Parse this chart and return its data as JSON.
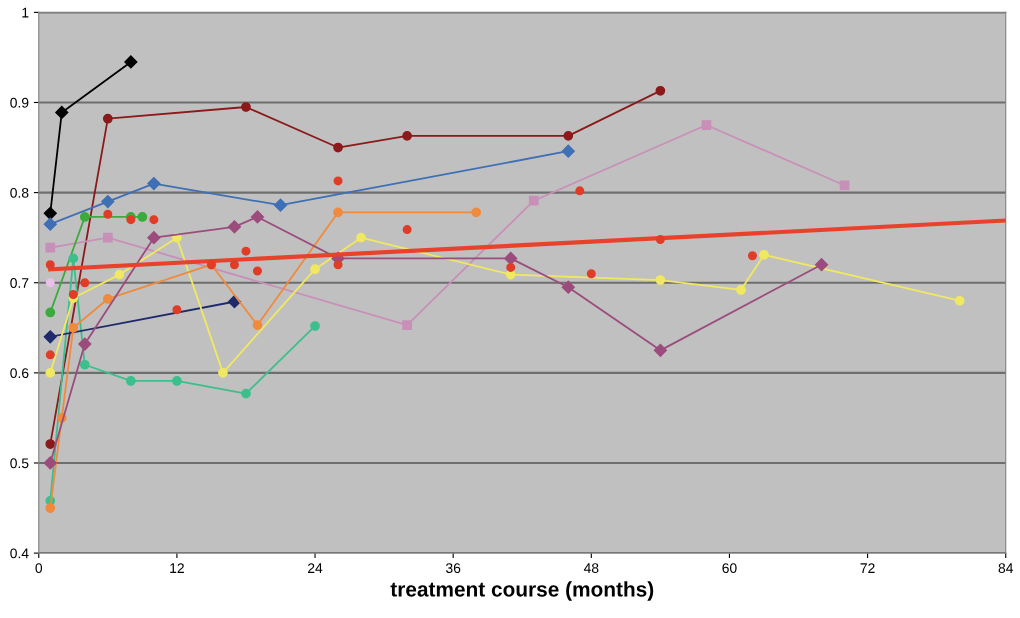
{
  "chart_data": {
    "type": "line",
    "xlabel": "treatment course (months)",
    "xlim": [
      0,
      84
    ],
    "xticks": [
      0,
      12,
      24,
      36,
      48,
      60,
      72,
      84
    ],
    "ylim": [
      0.4,
      1
    ],
    "yticks": [
      0.4,
      0.5,
      0.6,
      0.7,
      0.8,
      0.9,
      1
    ],
    "grid": "y",
    "series": [
      {
        "color": "#000000",
        "marker": "diamond",
        "x": [
          1,
          2,
          8
        ],
        "values": [
          0.777,
          0.889,
          0.945
        ]
      },
      {
        "color": "#8b1a1a",
        "marker": "circle",
        "x": [
          1,
          6,
          18,
          26,
          32,
          46,
          54
        ],
        "values": [
          0.521,
          0.882,
          0.895,
          0.85,
          0.863,
          0.863,
          0.913
        ]
      },
      {
        "color": "#3f6fb5",
        "marker": "diamond",
        "x": [
          1,
          6,
          10,
          21,
          46
        ],
        "values": [
          0.765,
          0.79,
          0.81,
          0.786,
          0.846
        ]
      },
      {
        "color": "#c890b8",
        "marker": "square",
        "x": [
          1,
          6,
          32,
          43,
          58,
          70
        ],
        "values": [
          0.739,
          0.75,
          0.653,
          0.791,
          0.875,
          0.808
        ]
      },
      {
        "color": "#3caa3c",
        "marker": "circle",
        "x": [
          1,
          4,
          8,
          9
        ],
        "values": [
          0.667,
          0.773,
          0.773,
          0.773
        ]
      },
      {
        "color": "#3cbf8c",
        "marker": "circle",
        "x": [
          1,
          3,
          4,
          8,
          12,
          18,
          24
        ],
        "values": [
          0.458,
          0.727,
          0.609,
          0.591,
          0.591,
          0.577,
          0.652
        ]
      },
      {
        "color": "#1f2a6b",
        "marker": "diamond",
        "x": [
          1,
          17
        ],
        "values": [
          0.64,
          0.679
        ]
      },
      {
        "color": "#f0e860",
        "marker": "circle",
        "x": [
          1,
          3,
          7,
          12,
          16,
          24,
          28,
          41,
          54,
          61,
          63,
          80
        ],
        "values": [
          0.6,
          0.683,
          0.709,
          0.75,
          0.6,
          0.715,
          0.75,
          0.709,
          0.703,
          0.692,
          0.731,
          0.68
        ]
      },
      {
        "color": "#f08a3c",
        "marker": "circle",
        "x": [
          1,
          2,
          3,
          6,
          15,
          19,
          26,
          38
        ],
        "values": [
          0.45,
          0.55,
          0.65,
          0.682,
          0.72,
          0.653,
          0.778,
          0.778
        ]
      },
      {
        "color": "#9c4c7c",
        "marker": "diamond",
        "x": [
          1,
          4,
          10,
          17,
          19,
          26,
          41,
          46,
          54,
          68
        ],
        "values": [
          0.5,
          0.632,
          0.75,
          0.762,
          0.773,
          0.727,
          0.727,
          0.695,
          0.625,
          0.72
        ]
      },
      {
        "type": "scatter",
        "color": "#e8c0e8",
        "marker": "circle",
        "x": [
          1
        ],
        "values": [
          0.7
        ]
      },
      {
        "type": "scatter",
        "color": "#e03c28",
        "marker": "circle",
        "x": [
          1,
          1,
          3,
          4,
          6,
          8,
          10,
          12,
          15,
          17,
          18,
          19,
          26,
          26,
          32,
          41,
          47,
          48,
          54,
          62
        ],
        "values": [
          0.72,
          0.62,
          0.687,
          0.7,
          0.776,
          0.77,
          0.77,
          0.67,
          0.72,
          0.72,
          0.735,
          0.713,
          0.813,
          0.72,
          0.759,
          0.717,
          0.802,
          0.71,
          0.748,
          0.73
        ]
      },
      {
        "color": "#e8412c",
        "marker": "none",
        "x": [
          1,
          84
        ],
        "values": [
          0.715,
          0.769
        ]
      }
    ]
  }
}
